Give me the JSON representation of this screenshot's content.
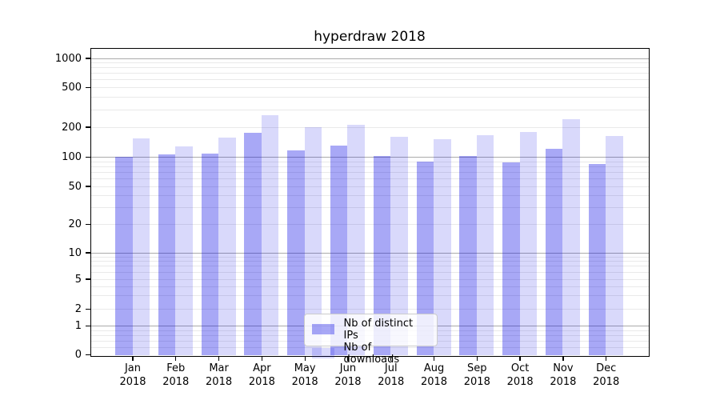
{
  "chart_data": {
    "type": "bar",
    "title": "hyperdraw 2018",
    "categories": [
      "Jan",
      "Feb",
      "Mar",
      "Apr",
      "May",
      "Jun",
      "Jul",
      "Aug",
      "Sep",
      "Oct",
      "Nov",
      "Dec"
    ],
    "category_year": "2018",
    "series": [
      {
        "name": "Nb of distinct IPs",
        "color": "rgba(0,0,230,0.34)",
        "values": [
          100,
          105,
          108,
          175,
          117,
          130,
          101,
          90,
          101,
          88,
          120,
          84
        ]
      },
      {
        "name": "Nb of downloads",
        "color": "rgba(0,0,230,0.15)",
        "values": [
          154,
          127,
          156,
          260,
          200,
          210,
          160,
          150,
          166,
          176,
          240,
          161
        ]
      }
    ],
    "xlabel": "",
    "ylabel": "",
    "y_scale": "symlog",
    "ylim": [
      0,
      1300
    ],
    "grid": "on",
    "legend_position": "lower center",
    "y_axis": {
      "ticks": [
        {
          "value": 0,
          "label": "0"
        },
        {
          "value": 1,
          "label": "1"
        },
        {
          "value": 2,
          "label": "2"
        },
        {
          "value": 5,
          "label": "5"
        },
        {
          "value": 10,
          "label": "10"
        },
        {
          "value": 20,
          "label": "20"
        },
        {
          "value": 50,
          "label": "50"
        },
        {
          "value": 100,
          "label": "100"
        },
        {
          "value": 200,
          "label": "200"
        },
        {
          "value": 500,
          "label": "500"
        },
        {
          "value": 1000,
          "label": "1000"
        }
      ]
    }
  },
  "colors": {
    "bar_ips": "rgba(0,0,230,0.34)",
    "bar_downloads": "rgba(0,0,230,0.15)",
    "grid_major": "#ababab",
    "grid_minor": "#e9e9e9",
    "axis": "#000000",
    "legend_border": "#cccccc"
  }
}
